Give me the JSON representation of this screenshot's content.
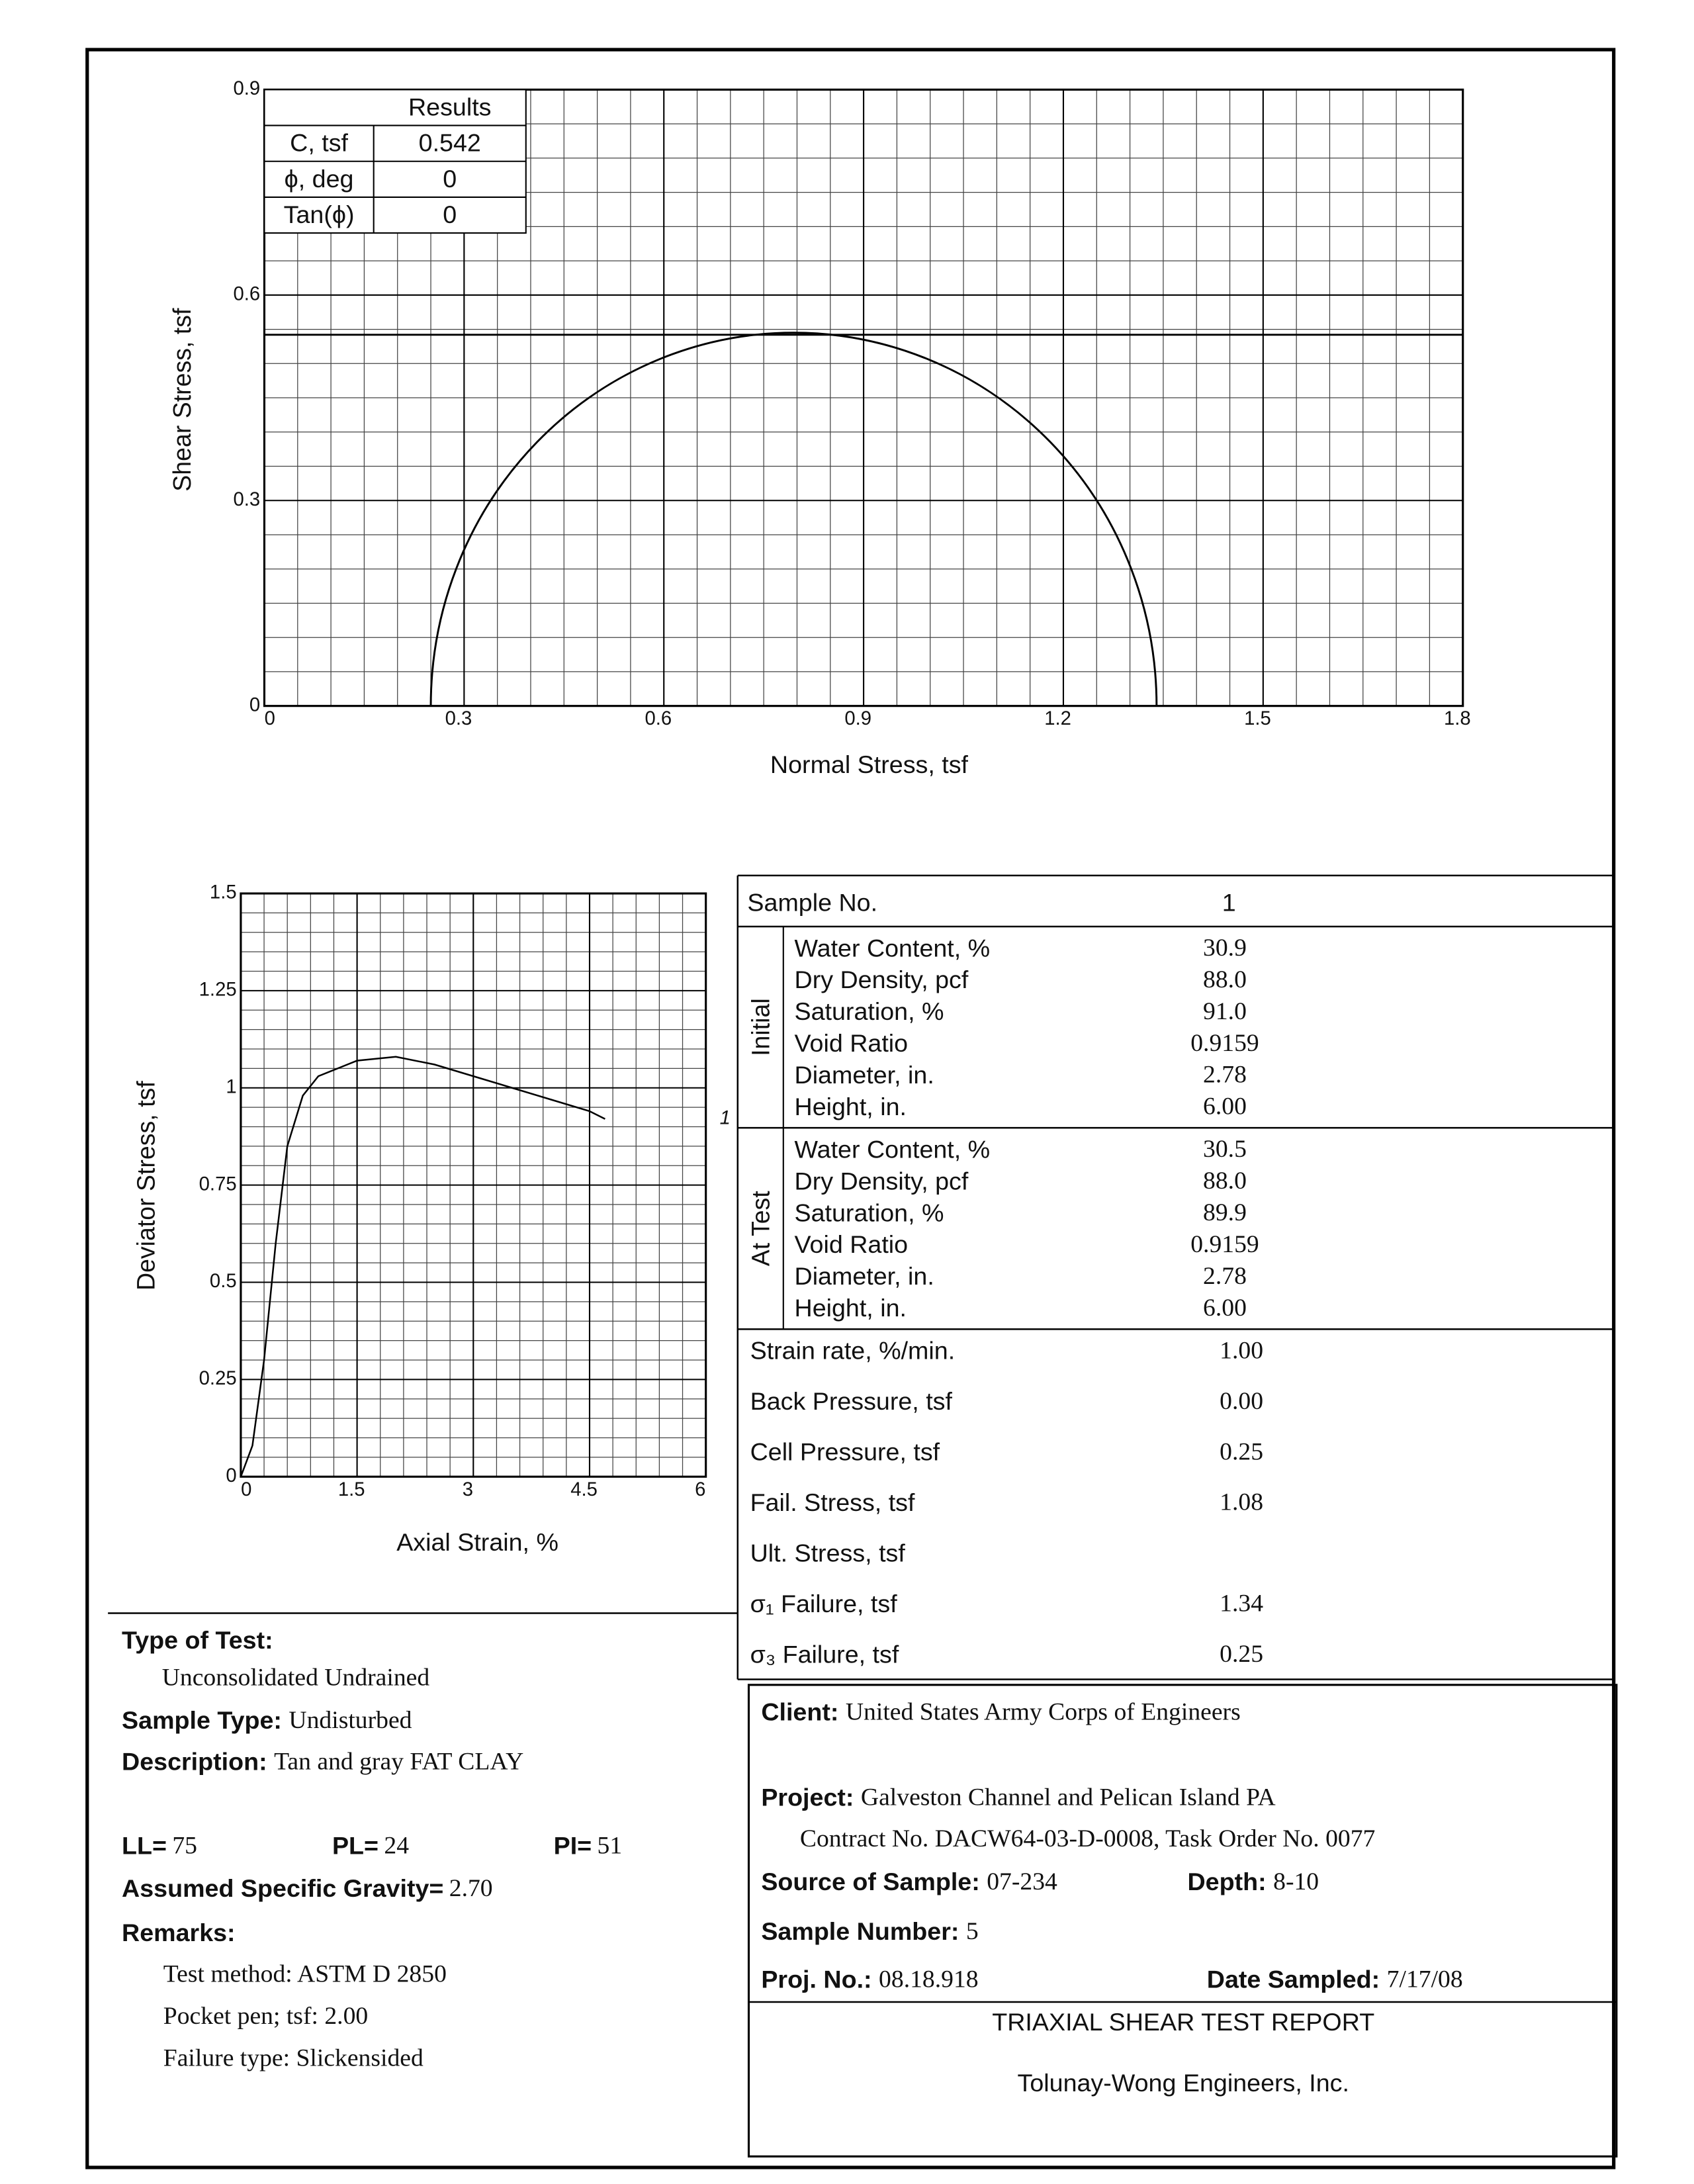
{
  "chart_data": [
    {
      "type": "mohr",
      "xlabel": "Normal Stress, tsf",
      "ylabel": "Shear Stress, tsf",
      "xlim": [
        0,
        1.8
      ],
      "xticks": [
        0,
        0.3,
        0.6,
        0.9,
        1.2,
        1.5,
        1.8
      ],
      "ylim": [
        0,
        0.9
      ],
      "yticks": [
        0,
        0.3,
        0.6,
        0.9
      ],
      "grid": true,
      "minor_divisions": 6,
      "color": "#000000",
      "circles": [
        {
          "sigma3": 0.25,
          "sigma1": 1.34
        }
      ],
      "results": {
        "title": "Results",
        "rows": [
          {
            "label": "C, tsf",
            "value": 0.542
          },
          {
            "label": "ϕ, deg",
            "value": 0
          },
          {
            "label": "Tan(ϕ)",
            "value": 0
          }
        ]
      }
    },
    {
      "type": "line",
      "xlabel": "Axial Strain, %",
      "ylabel": "Deviator Stress, tsf",
      "xlim": [
        0,
        6
      ],
      "xticks": [
        0,
        1.5,
        3,
        4.5,
        6
      ],
      "ylim": [
        0,
        1.5
      ],
      "yticks": [
        0,
        0.25,
        0.5,
        0.75,
        1,
        1.25,
        1.5
      ],
      "grid": true,
      "minor_divisions": 5,
      "x": [
        0,
        0.15,
        0.3,
        0.45,
        0.6,
        0.8,
        1.0,
        1.5,
        2.0,
        2.5,
        3.0,
        3.5,
        4.0,
        4.5,
        4.7
      ],
      "series": [
        {
          "name": "1",
          "color": "#000000",
          "values": [
            0,
            0.08,
            0.3,
            0.6,
            0.85,
            0.98,
            1.03,
            1.07,
            1.08,
            1.06,
            1.03,
            1.0,
            0.97,
            0.94,
            0.92
          ]
        }
      ]
    }
  ],
  "sample_table": {
    "header": {
      "label": "Sample No.",
      "value": "1"
    },
    "groups": [
      {
        "name": "Initial",
        "rows": [
          {
            "label": "Water Content, %",
            "value": "30.9"
          },
          {
            "label": "Dry Density, pcf",
            "value": "88.0"
          },
          {
            "label": "Saturation, %",
            "value": "91.0"
          },
          {
            "label": "Void Ratio",
            "value": "0.9159"
          },
          {
            "label": "Diameter, in.",
            "value": "2.78"
          },
          {
            "label": "Height, in.",
            "value": "6.00"
          }
        ]
      },
      {
        "name": "At Test",
        "rows": [
          {
            "label": "Water Content, %",
            "value": "30.5"
          },
          {
            "label": "Dry Density, pcf",
            "value": "88.0"
          },
          {
            "label": "Saturation, %",
            "value": "89.9"
          },
          {
            "label": "Void Ratio",
            "value": "0.9159"
          },
          {
            "label": "Diameter, in.",
            "value": "2.78"
          },
          {
            "label": "Height, in.",
            "value": "6.00"
          }
        ]
      }
    ],
    "rows": [
      {
        "label": "Strain rate, %/min.",
        "value": "1.00"
      },
      {
        "label": "Back Pressure, tsf",
        "value": "0.00"
      },
      {
        "label": "Cell Pressure, tsf",
        "value": "0.25"
      },
      {
        "label": "Fail. Stress, tsf",
        "value": "1.08"
      },
      {
        "label": "Ult. Stress, tsf"
      },
      {
        "label": "σ₁ Failure, tsf",
        "value": "1.34"
      },
      {
        "label": "σ₃ Failure, tsf",
        "value": "0.25"
      }
    ]
  },
  "test_info": {
    "type_of_test": {
      "label": "Type of Test:",
      "value": "Unconsolidated Undrained"
    },
    "sample_type": {
      "label": "Sample Type:",
      "value": "Undisturbed"
    },
    "description": {
      "label": "Description:",
      "value": "Tan and gray FAT CLAY"
    },
    "ll": {
      "label": "LL=",
      "value": "75"
    },
    "pl": {
      "label": "PL=",
      "value": "24"
    },
    "pi": {
      "label": "PI=",
      "value": "51"
    },
    "specific_gravity": {
      "label": "Assumed Specific Gravity=",
      "value": "2.70"
    },
    "remarks": {
      "label": "Remarks:",
      "lines": [
        "Test method: ASTM D 2850",
        "Pocket pen; tsf: 2.00",
        "Failure type: Slickensided"
      ]
    }
  },
  "project_info": {
    "client": {
      "label": "Client:",
      "value": "United States Army Corps of Engineers"
    },
    "project": {
      "label": "Project:",
      "value": "Galveston Channel and Pelican Island PA"
    },
    "contract": "Contract No. DACW64-03-D-0008, Task Order No. 0077",
    "source": {
      "label": "Source of Sample:",
      "value": "07-234"
    },
    "depth": {
      "label": "Depth:",
      "value": "8-10"
    },
    "sample_number": {
      "label": "Sample Number:",
      "value": "5"
    },
    "proj_no": {
      "label": "Proj. No.:",
      "value": "08.18.918"
    },
    "date_sampled": {
      "label": "Date Sampled:",
      "value": "7/17/08"
    },
    "report_title": "TRIAXIAL SHEAR TEST REPORT",
    "company": "Tolunay-Wong Engineers, Inc."
  }
}
